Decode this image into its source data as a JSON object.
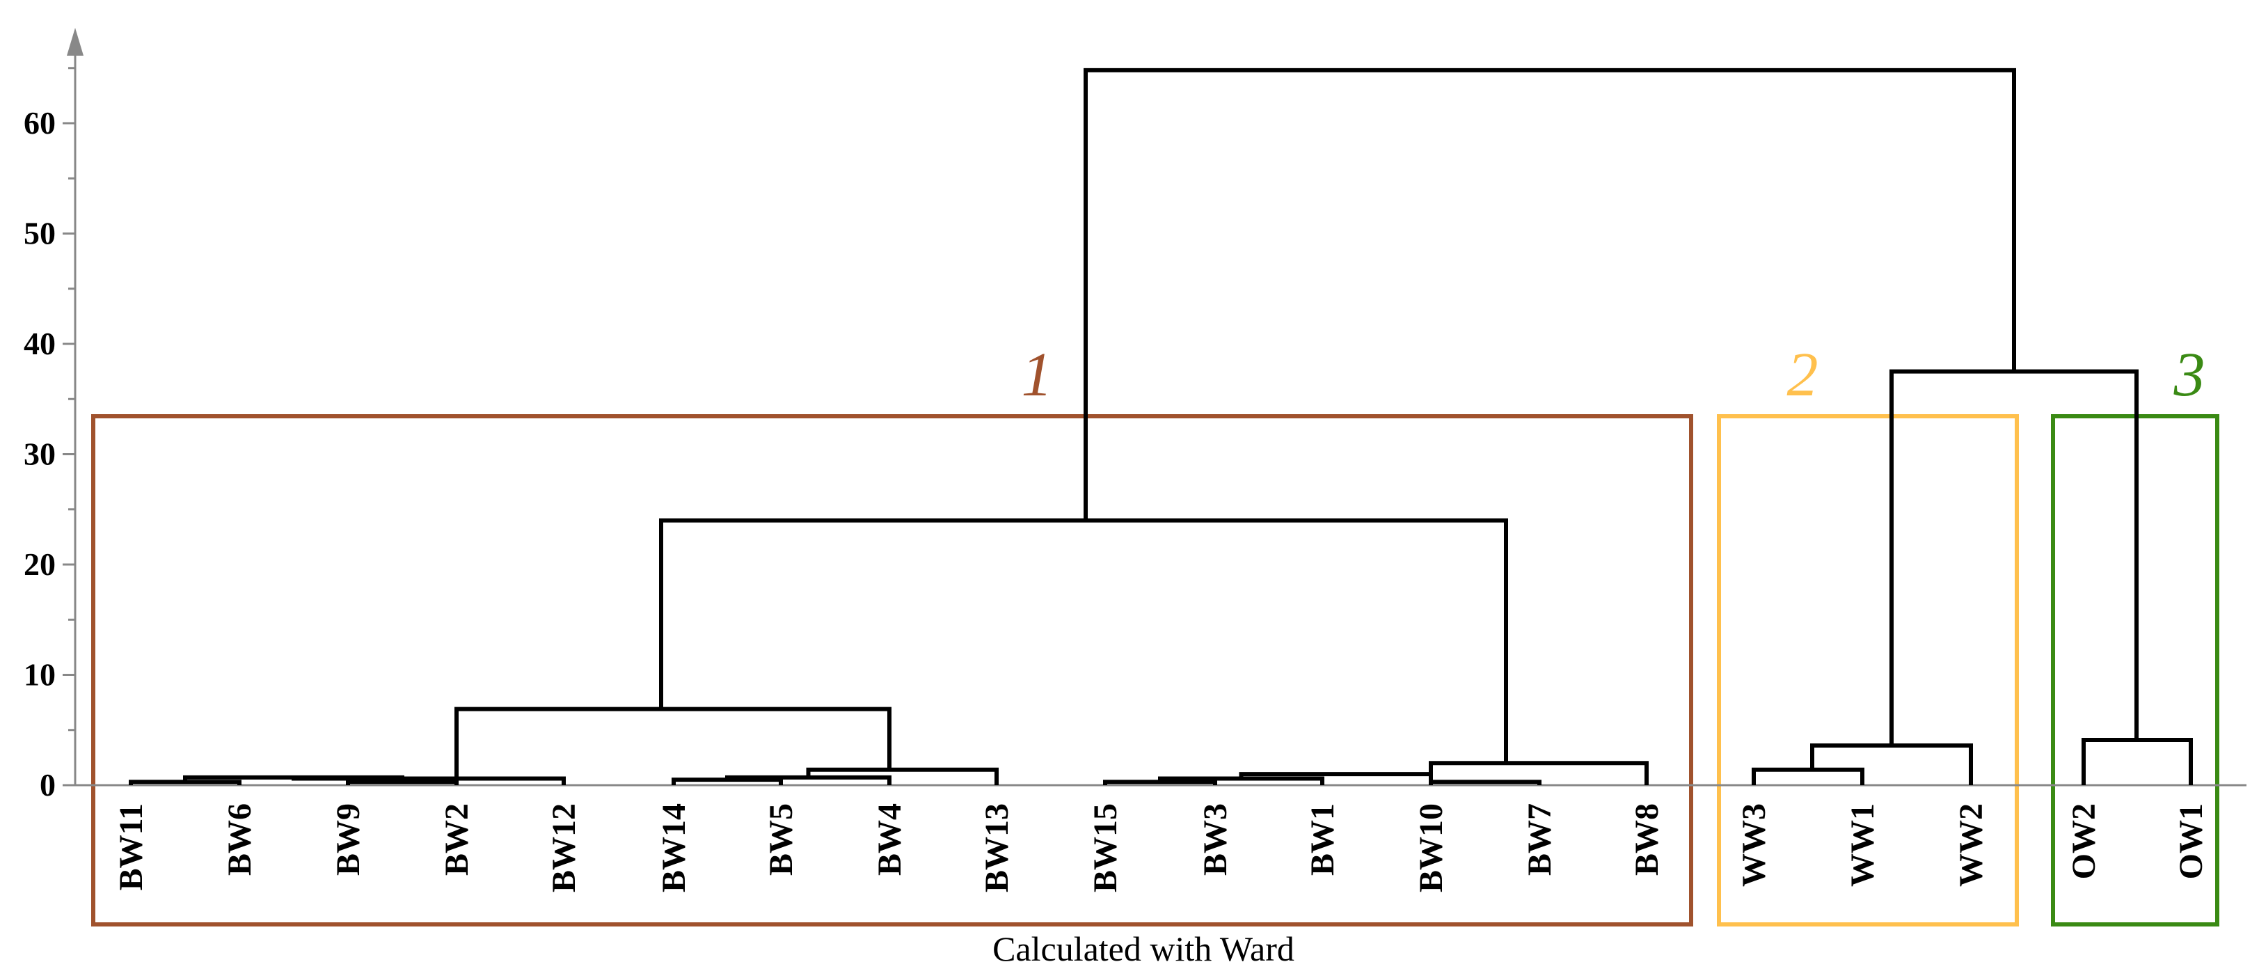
{
  "chart_data": {
    "type": "dendrogram",
    "xlabel": "Calculated with Ward",
    "ylim": [
      0,
      70
    ],
    "yticks": [
      "0",
      "10",
      "20",
      "30",
      "40",
      "50",
      "60"
    ],
    "leaves": [
      "BW11",
      "BW6",
      "BW9",
      "BW2",
      "BW12",
      "BW14",
      "BW5",
      "BW4",
      "BW13",
      "BW15",
      "BW3",
      "BW1",
      "BW10",
      "BW7",
      "BW8",
      "WW3",
      "WW1",
      "WW2",
      "OW2",
      "OW1"
    ],
    "merges": [
      {
        "left": "BW11",
        "right": "BW6",
        "height": 0.3
      },
      {
        "left": "BW9",
        "right": "BW2",
        "height": 0.3
      },
      {
        "left": "BW11+BW6",
        "right": "BW9+BW2",
        "height": 0.7
      },
      {
        "left": "BW11+BW6+BW9+BW2",
        "right": "BW12",
        "height": 0.6
      },
      {
        "left": "BW14",
        "right": "BW5",
        "height": 0.5
      },
      {
        "left": "BW14+BW5",
        "right": "BW4",
        "height": 0.7
      },
      {
        "left": "BW14+BW5+BW4",
        "right": "BW13",
        "height": 1.4
      },
      {
        "left": "cluster BW11..BW12",
        "right": "cluster BW14..BW13",
        "height": 6.9
      },
      {
        "left": "BW15",
        "right": "BW3",
        "height": 0.3
      },
      {
        "left": "BW15+BW3",
        "right": "BW1",
        "height": 0.6
      },
      {
        "left": "BW10",
        "right": "BW7",
        "height": 0.3
      },
      {
        "left": "BW15+BW3+BW1",
        "right": "BW10+BW7",
        "height": 1.0
      },
      {
        "left": "BW15..BW7",
        "right": "BW8",
        "height": 2.0
      },
      {
        "left": "cluster BW11..BW13",
        "right": "cluster BW15..BW8",
        "height": 24.0
      },
      {
        "left": "WW3",
        "right": "WW1",
        "height": 1.4
      },
      {
        "left": "WW3+WW1",
        "right": "WW2",
        "height": 3.6
      },
      {
        "left": "OW2",
        "right": "OW1",
        "height": 4.1
      },
      {
        "left": "WW cluster",
        "right": "OW cluster",
        "height": 37.5
      },
      {
        "left": "BW cluster",
        "right": "WW+OW cluster",
        "height": 64.8
      }
    ],
    "groups": [
      {
        "label": "1",
        "color": "#A0522D",
        "first": "BW11",
        "last": "BW8"
      },
      {
        "label": "2",
        "color": "#FFC04D",
        "first": "WW3",
        "last": "WW2"
      },
      {
        "label": "3",
        "color": "#3A8A14",
        "first": "OW2",
        "last": "OW1"
      }
    ]
  }
}
